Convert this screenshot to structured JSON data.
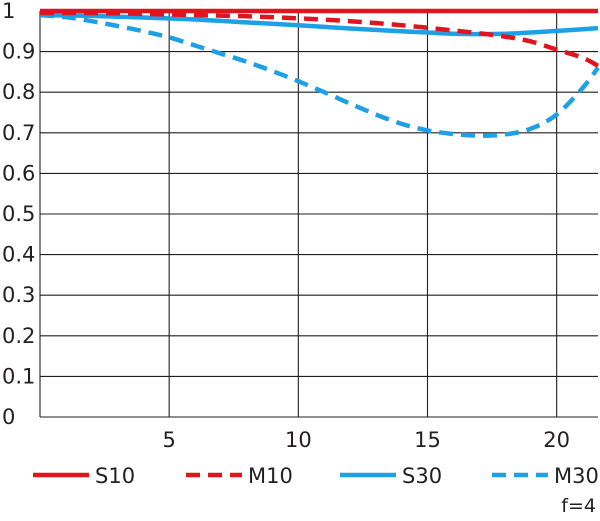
{
  "chart_data": {
    "type": "line",
    "xlim": [
      0,
      21.6
    ],
    "ylim": [
      0,
      1
    ],
    "x_ticks": [
      "5",
      "10",
      "15",
      "20"
    ],
    "y_ticks": [
      "0",
      "0.1",
      "0.2",
      "0.3",
      "0.4",
      "0.5",
      "0.6",
      "0.7",
      "0.8",
      "0.9",
      "1"
    ],
    "grid": true,
    "legend_position": "bottom",
    "note": "f=4",
    "series": [
      {
        "name": "S10",
        "color": "#e0141e",
        "style": "solid",
        "points": [
          [
            0,
            1.0
          ],
          [
            5,
            1.0
          ],
          [
            10,
            1.0
          ],
          [
            15,
            1.0
          ],
          [
            20,
            1.0
          ],
          [
            21.6,
            1.0
          ]
        ]
      },
      {
        "name": "M10",
        "color": "#e0141e",
        "style": "dashed",
        "points": [
          [
            0,
            0.995
          ],
          [
            2,
            0.995
          ],
          [
            4,
            0.993
          ],
          [
            6,
            0.99
          ],
          [
            8,
            0.987
          ],
          [
            10,
            0.982
          ],
          [
            12,
            0.975
          ],
          [
            14,
            0.965
          ],
          [
            16,
            0.952
          ],
          [
            17,
            0.945
          ],
          [
            18,
            0.937
          ],
          [
            19,
            0.925
          ],
          [
            20,
            0.905
          ],
          [
            21,
            0.885
          ],
          [
            21.6,
            0.865
          ]
        ]
      },
      {
        "name": "S30",
        "color": "#1ea0e6",
        "style": "solid",
        "points": [
          [
            0,
            0.99
          ],
          [
            2,
            0.988
          ],
          [
            4,
            0.984
          ],
          [
            6,
            0.979
          ],
          [
            8,
            0.972
          ],
          [
            10,
            0.965
          ],
          [
            12,
            0.957
          ],
          [
            14,
            0.95
          ],
          [
            15,
            0.947
          ],
          [
            16,
            0.944
          ],
          [
            17,
            0.943
          ],
          [
            18,
            0.944
          ],
          [
            19,
            0.947
          ],
          [
            20,
            0.951
          ],
          [
            21,
            0.955
          ],
          [
            21.6,
            0.958
          ]
        ]
      },
      {
        "name": "M30",
        "color": "#1ea0e6",
        "style": "dashed",
        "points": [
          [
            0,
            0.99
          ],
          [
            1,
            0.985
          ],
          [
            2,
            0.975
          ],
          [
            3,
            0.963
          ],
          [
            4,
            0.95
          ],
          [
            5,
            0.935
          ],
          [
            6,
            0.915
          ],
          [
            7,
            0.895
          ],
          [
            8,
            0.875
          ],
          [
            9,
            0.852
          ],
          [
            10,
            0.827
          ],
          [
            11,
            0.8
          ],
          [
            12,
            0.772
          ],
          [
            13,
            0.745
          ],
          [
            14,
            0.722
          ],
          [
            15,
            0.706
          ],
          [
            16,
            0.697
          ],
          [
            17,
            0.693
          ],
          [
            18,
            0.696
          ],
          [
            19,
            0.71
          ],
          [
            20,
            0.745
          ],
          [
            21,
            0.81
          ],
          [
            21.6,
            0.86
          ]
        ]
      }
    ]
  }
}
